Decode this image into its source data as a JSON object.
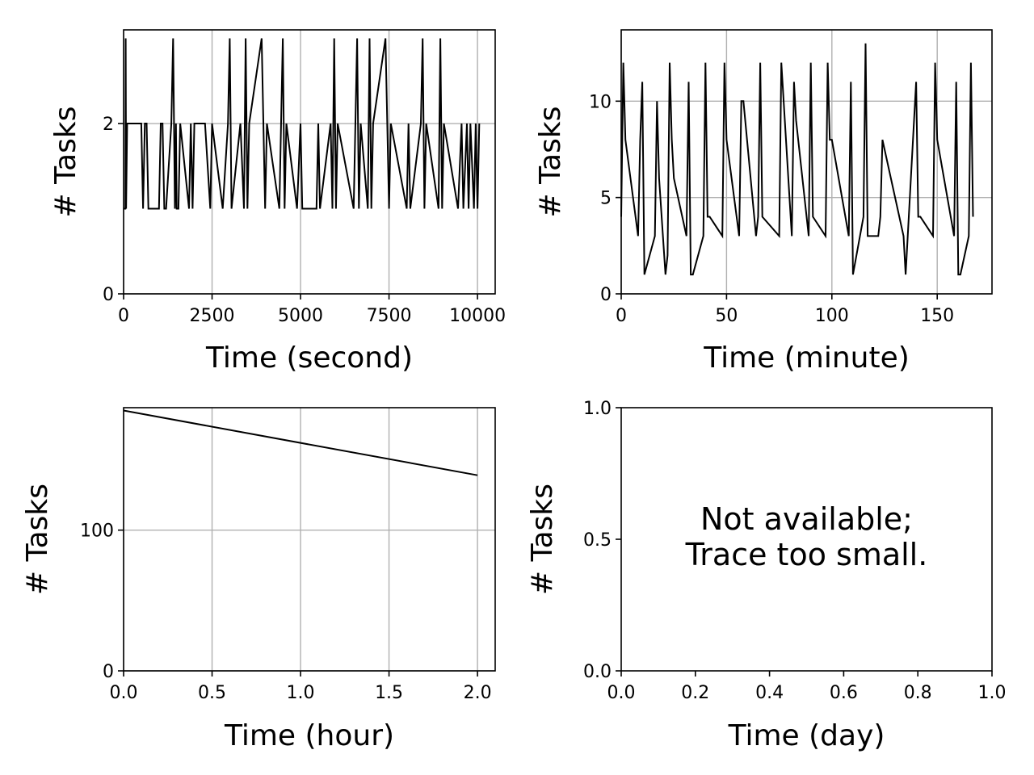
{
  "chart_data": [
    {
      "type": "line",
      "xlabel": "Time (second)",
      "ylabel": "# Tasks",
      "xlim": [
        0,
        10500
      ],
      "ylim": [
        0,
        3.1
      ],
      "xticks": [
        0,
        2500,
        5000,
        7500,
        10000
      ],
      "xtick_labels": [
        "0",
        "2500",
        "5000",
        "7500",
        "10000"
      ],
      "yticks": [
        0,
        2
      ],
      "ytick_labels": [
        "0",
        "2"
      ],
      "grid": true,
      "series": [
        {
          "x": [
            0,
            50,
            60,
            70,
            100,
            500,
            550,
            600,
            650,
            700,
            1000,
            1050,
            1100,
            1150,
            1200,
            1350,
            1400,
            1450,
            1480,
            1500,
            1550,
            1600,
            1850,
            1900,
            1950,
            2000,
            2300,
            2450,
            2500,
            2800,
            2950,
            3000,
            3050,
            3300,
            3400,
            3450,
            3500,
            3550,
            3900,
            4000,
            4050,
            4400,
            4500,
            4550,
            4600,
            4900,
            5000,
            5050,
            5450,
            5500,
            5550,
            5850,
            5900,
            5950,
            6000,
            6050,
            6500,
            6600,
            6650,
            6700,
            6900,
            6950,
            7000,
            7050,
            7400,
            7500,
            7550,
            8000,
            8050,
            8100,
            8400,
            8450,
            8500,
            8550,
            8900,
            8950,
            9000,
            9050,
            9450,
            9550,
            9600,
            9700,
            9750,
            9800,
            9900,
            9950,
            10000,
            10050
          ],
          "y": [
            1,
            1,
            3,
            1,
            2,
            2,
            1,
            2,
            2,
            1,
            1,
            2,
            2,
            1,
            1,
            2,
            3,
            1,
            2,
            1,
            1,
            2,
            1,
            2,
            1,
            2,
            2,
            1,
            2,
            1,
            2,
            3,
            1,
            2,
            1,
            3,
            1,
            2,
            3,
            1,
            2,
            1,
            3,
            1,
            2,
            1,
            2,
            1,
            1,
            2,
            1,
            2,
            1,
            3,
            1,
            2,
            1,
            3,
            1,
            2,
            1,
            3,
            1,
            2,
            3,
            1,
            2,
            1,
            2,
            1,
            2,
            3,
            1,
            2,
            1,
            3,
            1,
            2,
            1,
            2,
            1,
            2,
            1,
            2,
            1,
            2,
            1,
            2
          ]
        }
      ]
    },
    {
      "type": "line",
      "xlabel": "Time (minute)",
      "ylabel": "# Tasks",
      "xlim": [
        0,
        176
      ],
      "ylim": [
        0,
        13.7
      ],
      "xticks": [
        0,
        50,
        100,
        150
      ],
      "xtick_labels": [
        "0",
        "50",
        "100",
        "150"
      ],
      "yticks": [
        0,
        5,
        10
      ],
      "ytick_labels": [
        "0",
        "5",
        "10"
      ],
      "grid": true,
      "series": [
        {
          "x": [
            0,
            1,
            2,
            8,
            9,
            10,
            11,
            16,
            17,
            18,
            21,
            22,
            23,
            24,
            25,
            31,
            32,
            33,
            34,
            39,
            40,
            41,
            42,
            48,
            49,
            50,
            56,
            57,
            58,
            64,
            65,
            66,
            67,
            75,
            76,
            81,
            82,
            83,
            89,
            90,
            91,
            97,
            98,
            99,
            100,
            108,
            109,
            110,
            115,
            116,
            117,
            118,
            122,
            123,
            124,
            134,
            135,
            136,
            140,
            141,
            142,
            148,
            149,
            150,
            158,
            159,
            160,
            161,
            165,
            166,
            167
          ],
          "y": [
            4,
            12,
            8,
            3,
            8,
            11,
            1,
            3,
            10,
            6,
            1,
            2,
            12,
            8,
            6,
            3,
            11,
            1,
            1,
            3,
            12,
            4,
            4,
            3,
            12,
            8,
            3,
            10,
            10,
            3,
            4,
            12,
            4,
            3,
            12,
            3,
            11,
            9,
            3,
            12,
            4,
            3,
            12,
            8,
            8,
            3,
            11,
            1,
            4,
            13,
            3,
            3,
            3,
            4,
            8,
            3,
            1,
            3,
            11,
            4,
            4,
            3,
            12,
            8,
            3,
            11,
            1,
            1,
            3,
            12,
            4
          ]
        }
      ]
    },
    {
      "type": "line",
      "xlabel": "Time (hour)",
      "ylabel": "# Tasks",
      "xlim": [
        0,
        2.1
      ],
      "ylim": [
        0,
        187
      ],
      "xticks": [
        0,
        0.5,
        1,
        1.5,
        2
      ],
      "xtick_labels": [
        "0.0",
        "0.5",
        "1.0",
        "1.5",
        "2.0"
      ],
      "yticks": [
        0,
        100
      ],
      "ytick_labels": [
        "0",
        "100"
      ],
      "grid": true,
      "series": [
        {
          "x": [
            0,
            2
          ],
          "y": [
            185,
            139
          ]
        }
      ]
    },
    {
      "type": "line",
      "xlabel": "Time (day)",
      "ylabel": "# Tasks",
      "xlim": [
        0,
        1
      ],
      "ylim": [
        0,
        1
      ],
      "xticks": [
        0,
        0.2,
        0.4,
        0.6,
        0.8,
        1
      ],
      "xtick_labels": [
        "0.0",
        "0.2",
        "0.4",
        "0.6",
        "0.8",
        "1.0"
      ],
      "yticks": [
        0,
        0.5,
        1
      ],
      "ytick_labels": [
        "0.0",
        "0.5",
        "1.0"
      ],
      "grid": false,
      "annotation": [
        "Not available;",
        "Trace too small."
      ],
      "series": []
    }
  ]
}
